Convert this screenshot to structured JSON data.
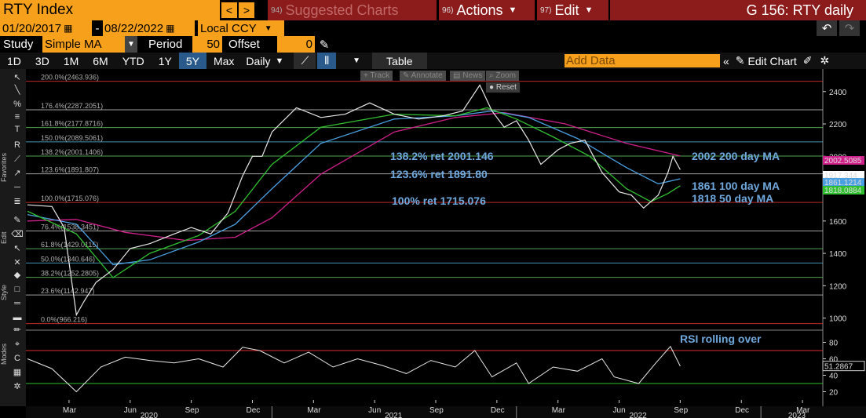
{
  "header": {
    "ticker": "RTY Index",
    "suggested_num": "94)",
    "suggested_label": "Suggested Charts",
    "actions_num": "96)",
    "actions_label": "Actions",
    "edit_num": "97)",
    "edit_label": "Edit",
    "graph_title": "G 156: RTY daily"
  },
  "range": {
    "start": "01/20/2017",
    "sep": "-",
    "end": "08/22/2022",
    "currency": "Local CCY"
  },
  "study": {
    "label": "Study",
    "type": "Simple MA",
    "period_label": "Period",
    "period": "50",
    "offset_label": "Offset",
    "offset": "0"
  },
  "periods": [
    "1D",
    "3D",
    "1M",
    "6M",
    "YTD",
    "1Y",
    "5Y",
    "Max"
  ],
  "active_period": "5Y",
  "toolbar": {
    "frequency": "Daily",
    "table": "Table",
    "add_data_placeholder": "Add Data",
    "edit_chart": "Edit Chart"
  },
  "widgets": {
    "track": "Track",
    "annotate": "Annotate",
    "news": "News",
    "zoom": "Zoom",
    "reset": "Reset"
  },
  "sidebar_labels": {
    "favorites": "Favorites",
    "edit": "Edit",
    "style": "Style",
    "modes": "Modes"
  },
  "fib_levels": [
    {
      "label": "200.0%(2463.936)",
      "value": 2463.936,
      "color": "#e03030"
    },
    {
      "label": "176.4%(2287.2051)",
      "value": 2287.2051,
      "color": "#bbbbbb"
    },
    {
      "label": "161.8%(2177.8716)",
      "value": 2177.8716,
      "color": "#60c060"
    },
    {
      "label": "150.0%(2089.5061)",
      "value": 2089.5061,
      "color": "#50b0d0"
    },
    {
      "label": "138.2%(2001.1406)",
      "value": 2001.1406,
      "color": "#60c060"
    },
    {
      "label": "123.6%(1891.807)",
      "value": 1891.807,
      "color": "#bbbbbb"
    },
    {
      "label": "100.0%(1715.076)",
      "value": 1715.076,
      "color": "#e03030"
    },
    {
      "label": "76.4%(1538.3451)",
      "value": 1538.3451,
      "color": "#bbbbbb"
    },
    {
      "label": "61.8%(1429.0115)",
      "value": 1429.0115,
      "color": "#60c060"
    },
    {
      "label": "50.0%(1340.646)",
      "value": 1340.646,
      "color": "#50b0d0"
    },
    {
      "label": "38.2%(1252.2805)",
      "value": 1252.2805,
      "color": "#60c060"
    },
    {
      "label": "23.6%(1142.947)",
      "value": 1142.947,
      "color": "#bbbbbb"
    },
    {
      "label": "0.0%(966.216)",
      "value": 966.216,
      "color": "#e03030"
    }
  ],
  "annotations": {
    "ret138": "138.2% ret 2001.146",
    "ret123": "123.6% ret 1891.80",
    "ret100": "100% ret 1715.076",
    "ma200": "2002 200 day MA",
    "ma100": "1861 100 day MA",
    "ma50": "1818 50 day MA",
    "rsi": "RSI rolling over"
  },
  "price_axis": {
    "ticks": [
      "2400",
      "2200",
      "2000",
      "1800",
      "1600",
      "1400",
      "1200",
      "1000"
    ]
  },
  "value_tags": [
    {
      "label": "2002.5085",
      "color": "#d0208a",
      "text_color": "#ffffff"
    },
    {
      "label": "1917.344",
      "color": "#ffffff",
      "text_color": "#000000"
    },
    {
      "label": "1861.1214",
      "color": "#4aa0e0",
      "text_color": "#000000"
    },
    {
      "label": "1818.0884",
      "color": "#30c030",
      "text_color": "#000000"
    }
  ],
  "rsi_axis": {
    "ticks": [
      "80",
      "60",
      "40",
      "20"
    ],
    "last": "51.2867",
    "upper": 70,
    "lower": 30
  },
  "time_axis": {
    "months": [
      "Mar",
      "Jun",
      "Sep",
      "Dec",
      "Mar",
      "Jun",
      "Sep",
      "Dec",
      "Mar",
      "Jun",
      "Sep",
      "Dec",
      "Mar"
    ],
    "years": [
      "2020",
      "2021",
      "2022",
      "2023"
    ]
  },
  "chart_data": {
    "type": "line",
    "title": "RTY Index",
    "series_name": "RTY",
    "x_range": [
      "2020-01",
      "2023-03"
    ],
    "ylim": [
      940,
      2520
    ],
    "price": [
      [
        2020.0,
        1700
      ],
      [
        2020.1,
        1690
      ],
      [
        2020.15,
        1560
      ],
      [
        2020.2,
        1020
      ],
      [
        2020.23,
        1100
      ],
      [
        2020.28,
        1220
      ],
      [
        2020.35,
        1300
      ],
      [
        2020.42,
        1430
      ],
      [
        2020.5,
        1460
      ],
      [
        2020.6,
        1520
      ],
      [
        2020.67,
        1560
      ],
      [
        2020.75,
        1520
      ],
      [
        2020.82,
        1650
      ],
      [
        2020.88,
        1880
      ],
      [
        2020.92,
        2000
      ],
      [
        2020.96,
        2000
      ],
      [
        2021.0,
        2150
      ],
      [
        2021.1,
        2300
      ],
      [
        2021.2,
        2240
      ],
      [
        2021.3,
        2260
      ],
      [
        2021.4,
        2330
      ],
      [
        2021.5,
        2260
      ],
      [
        2021.6,
        2230
      ],
      [
        2021.7,
        2250
      ],
      [
        2021.78,
        2280
      ],
      [
        2021.85,
        2440
      ],
      [
        2021.9,
        2280
      ],
      [
        2021.95,
        2180
      ],
      [
        2022.0,
        2220
      ],
      [
        2022.05,
        2100
      ],
      [
        2022.1,
        1950
      ],
      [
        2022.17,
        2040
      ],
      [
        2022.22,
        2080
      ],
      [
        2022.28,
        2100
      ],
      [
        2022.35,
        1900
      ],
      [
        2022.42,
        1780
      ],
      [
        2022.47,
        1760
      ],
      [
        2022.52,
        1680
      ],
      [
        2022.58,
        1760
      ],
      [
        2022.62,
        1900
      ],
      [
        2022.64,
        2000
      ],
      [
        2022.67,
        1917
      ]
    ],
    "ma50": [
      [
        2020.0,
        1660
      ],
      [
        2020.2,
        1520
      ],
      [
        2020.35,
        1250
      ],
      [
        2020.5,
        1400
      ],
      [
        2020.7,
        1510
      ],
      [
        2020.85,
        1660
      ],
      [
        2021.0,
        1950
      ],
      [
        2021.2,
        2180
      ],
      [
        2021.5,
        2260
      ],
      [
        2021.75,
        2250
      ],
      [
        2021.88,
        2300
      ],
      [
        2022.0,
        2230
      ],
      [
        2022.15,
        2120
      ],
      [
        2022.3,
        2000
      ],
      [
        2022.45,
        1800
      ],
      [
        2022.55,
        1720
      ],
      [
        2022.62,
        1770
      ],
      [
        2022.67,
        1818
      ]
    ],
    "ma100": [
      [
        2020.0,
        1640
      ],
      [
        2020.2,
        1580
      ],
      [
        2020.35,
        1330
      ],
      [
        2020.5,
        1360
      ],
      [
        2020.7,
        1470
      ],
      [
        2020.85,
        1580
      ],
      [
        2021.0,
        1800
      ],
      [
        2021.2,
        2080
      ],
      [
        2021.5,
        2230
      ],
      [
        2021.75,
        2250
      ],
      [
        2021.9,
        2280
      ],
      [
        2022.05,
        2240
      ],
      [
        2022.25,
        2110
      ],
      [
        2022.45,
        1930
      ],
      [
        2022.58,
        1830
      ],
      [
        2022.67,
        1861
      ]
    ],
    "ma200": [
      [
        2020.0,
        1600
      ],
      [
        2020.2,
        1610
      ],
      [
        2020.4,
        1530
      ],
      [
        2020.65,
        1480
      ],
      [
        2020.85,
        1500
      ],
      [
        2021.0,
        1620
      ],
      [
        2021.2,
        1890
      ],
      [
        2021.5,
        2150
      ],
      [
        2021.75,
        2240
      ],
      [
        2021.95,
        2270
      ],
      [
        2022.2,
        2200
      ],
      [
        2022.45,
        2080
      ],
      [
        2022.67,
        2002
      ]
    ],
    "rsi": [
      [
        2020.0,
        60
      ],
      [
        2020.1,
        48
      ],
      [
        2020.2,
        20
      ],
      [
        2020.3,
        50
      ],
      [
        2020.4,
        62
      ],
      [
        2020.5,
        58
      ],
      [
        2020.6,
        55
      ],
      [
        2020.7,
        60
      ],
      [
        2020.8,
        50
      ],
      [
        2020.88,
        74
      ],
      [
        2020.95,
        70
      ],
      [
        2021.05,
        55
      ],
      [
        2021.15,
        68
      ],
      [
        2021.25,
        50
      ],
      [
        2021.35,
        60
      ],
      [
        2021.45,
        52
      ],
      [
        2021.55,
        42
      ],
      [
        2021.65,
        58
      ],
      [
        2021.75,
        50
      ],
      [
        2021.83,
        70
      ],
      [
        2021.9,
        38
      ],
      [
        2022.0,
        55
      ],
      [
        2022.05,
        30
      ],
      [
        2022.15,
        50
      ],
      [
        2022.25,
        45
      ],
      [
        2022.35,
        60
      ],
      [
        2022.4,
        38
      ],
      [
        2022.5,
        30
      ],
      [
        2022.57,
        55
      ],
      [
        2022.63,
        75
      ],
      [
        2022.67,
        51
      ]
    ]
  }
}
